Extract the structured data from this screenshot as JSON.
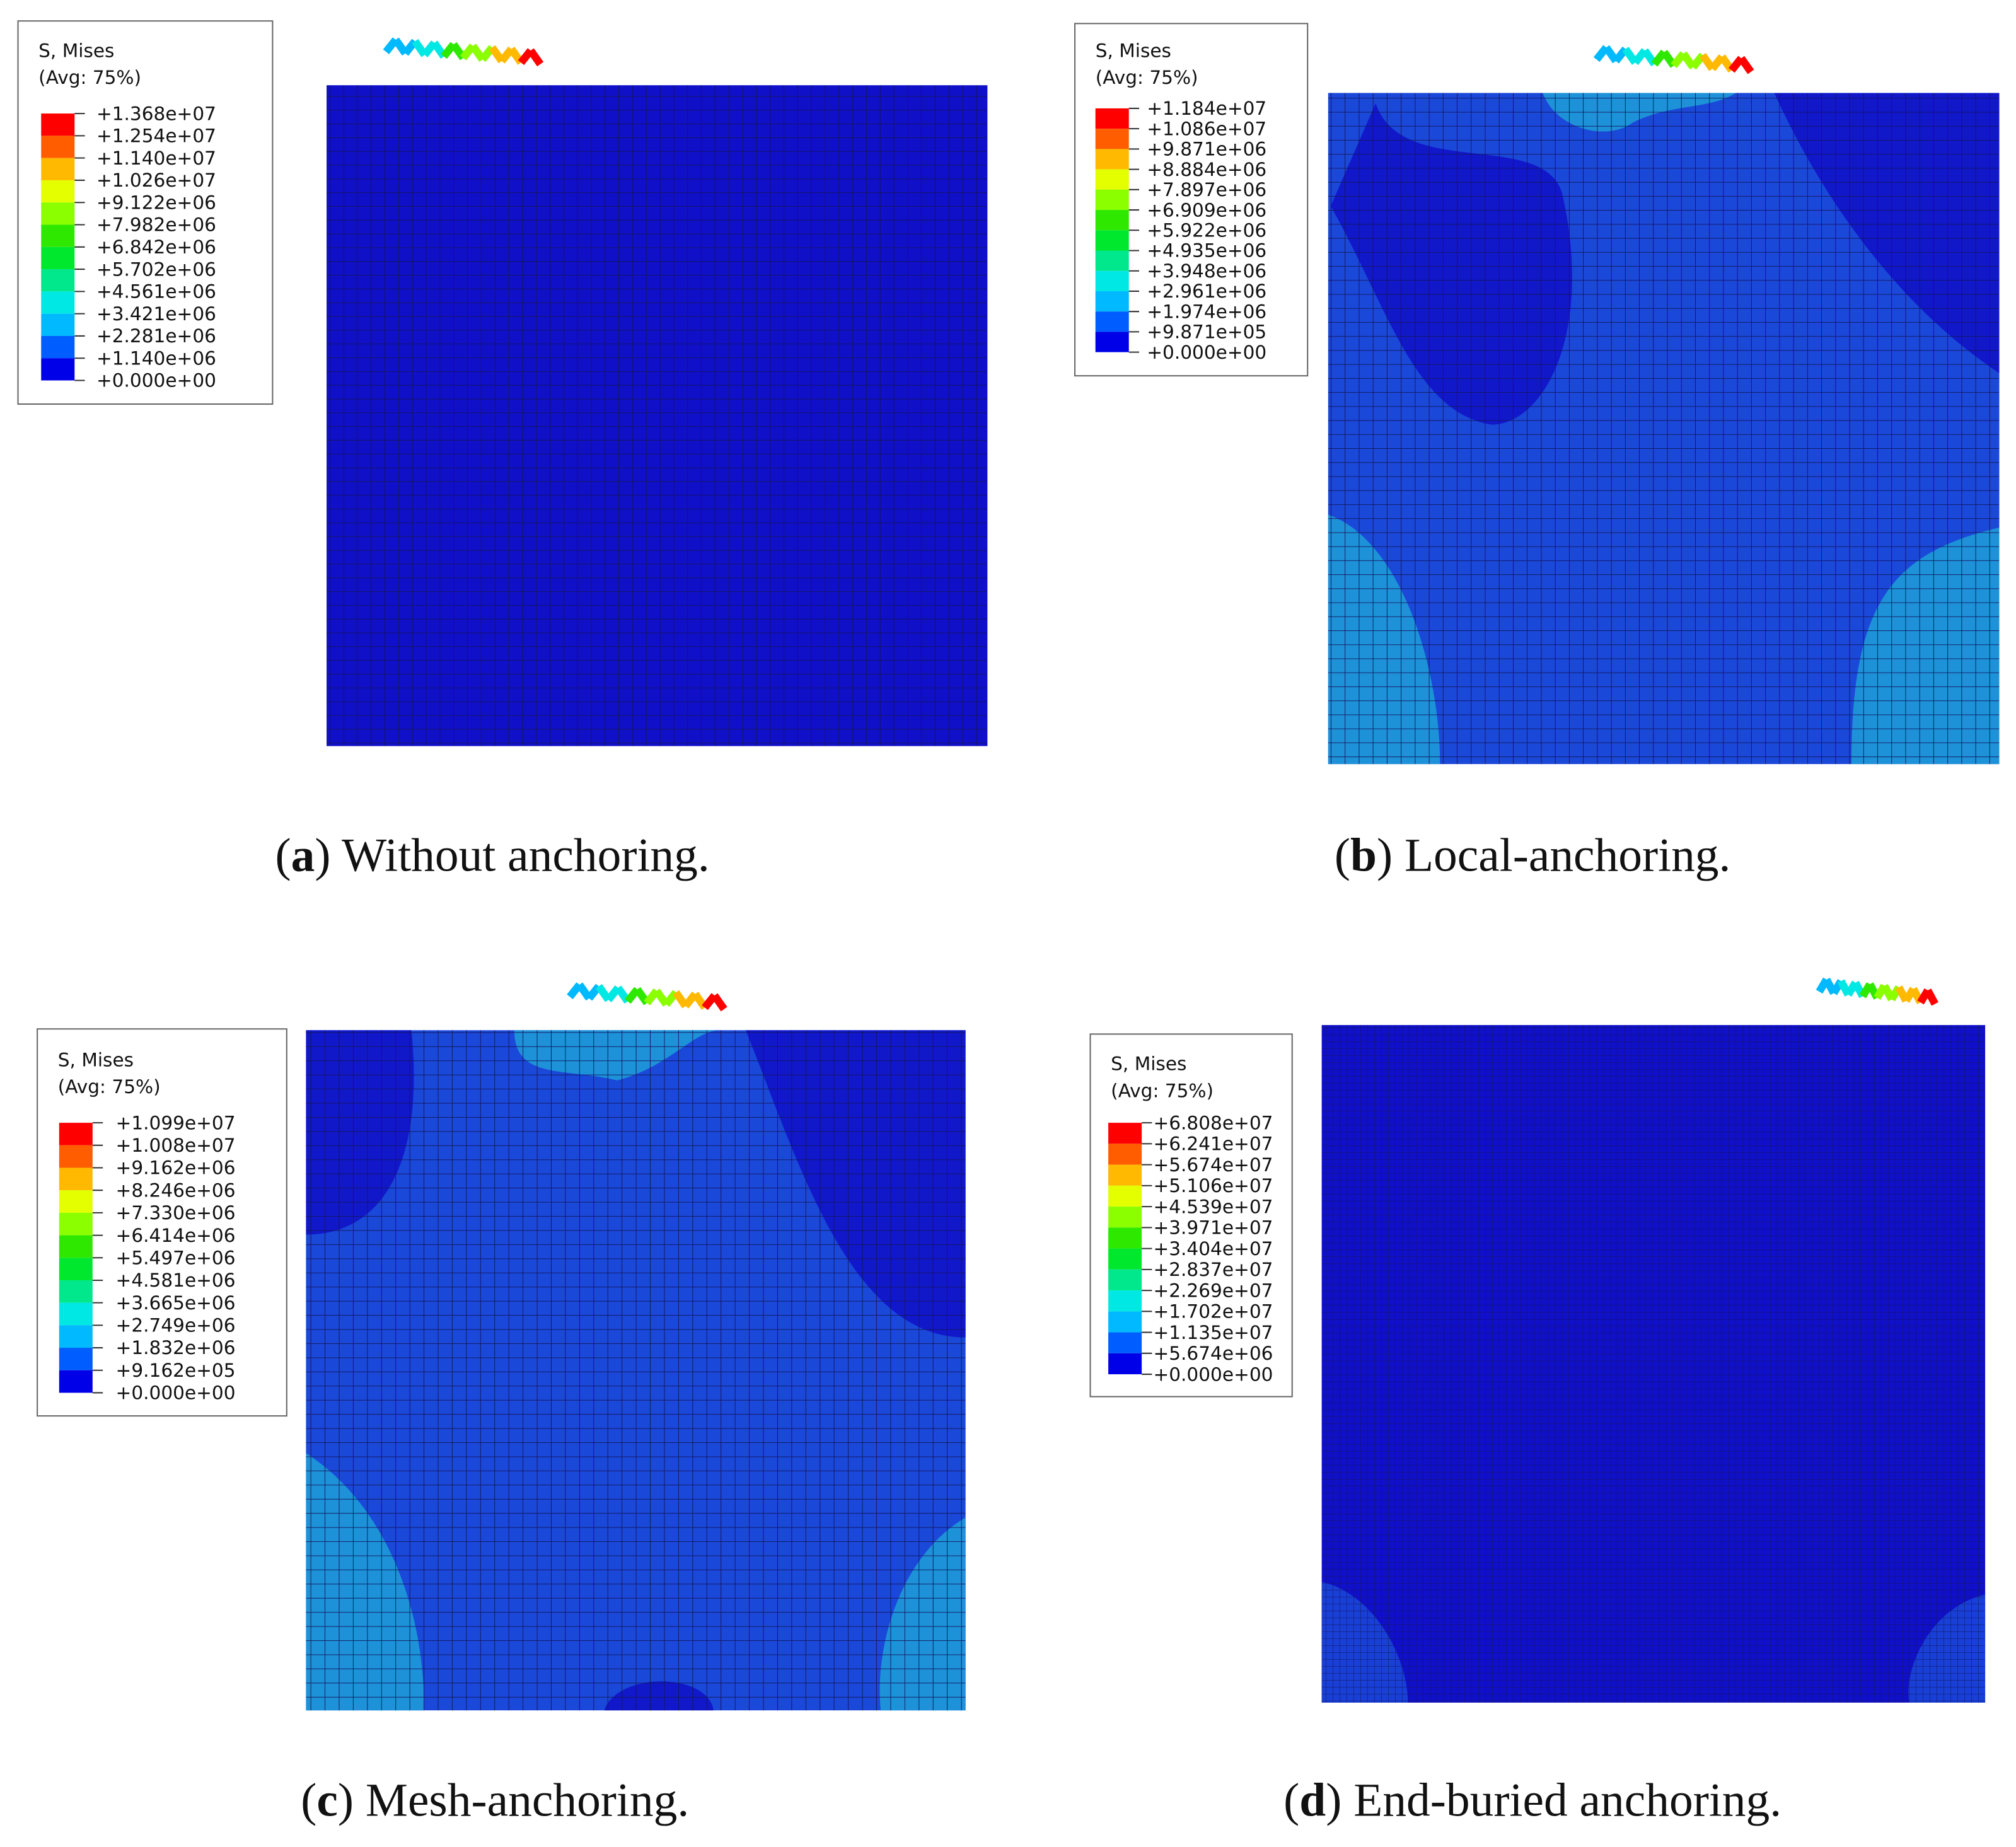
{
  "panels": [
    {
      "legend": {
        "title": "S, Mises",
        "subtitle": "(Avg: 75%)",
        "labels": [
          "+1.368e+07",
          "+1.254e+07",
          "+1.140e+07",
          "+1.026e+07",
          "+9.122e+06",
          "+7.982e+06",
          "+6.842e+06",
          "+5.702e+06",
          "+4.561e+06",
          "+3.421e+06",
          "+2.281e+06",
          "+1.140e+06",
          "+0.000e+00"
        ]
      },
      "caption": [
        "(",
        "a",
        ") Without anchoring."
      ]
    },
    {
      "legend": {
        "title": "S, Mises",
        "subtitle": "(Avg: 75%)",
        "labels": [
          "+1.184e+07",
          "+1.086e+07",
          "+9.871e+06",
          "+8.884e+06",
          "+7.897e+06",
          "+6.909e+06",
          "+5.922e+06",
          "+4.935e+06",
          "+3.948e+06",
          "+2.961e+06",
          "+1.974e+06",
          "+9.871e+05",
          "+0.000e+00"
        ]
      },
      "caption": [
        "(",
        "b",
        ") Local-anchoring."
      ]
    },
    {
      "legend": {
        "title": "S, Mises",
        "subtitle": "(Avg: 75%)",
        "labels": [
          "+1.099e+07",
          "+1.008e+07",
          "+9.162e+06",
          "+8.246e+06",
          "+7.330e+06",
          "+6.414e+06",
          "+5.497e+06",
          "+4.581e+06",
          "+3.665e+06",
          "+2.749e+06",
          "+1.832e+06",
          "+9.162e+05",
          "+0.000e+00"
        ]
      },
      "caption": [
        "(",
        "c",
        ") Mesh-anchoring."
      ]
    },
    {
      "legend": {
        "title": "S, Mises",
        "subtitle": "(Avg: 75%)",
        "labels": [
          "+6.808e+07",
          "+6.241e+07",
          "+5.674e+07",
          "+5.106e+07",
          "+4.539e+07",
          "+3.971e+07",
          "+3.404e+07",
          "+2.837e+07",
          "+2.269e+07",
          "+1.702e+07",
          "+1.135e+07",
          "+5.674e+06",
          "+0.000e+00"
        ]
      },
      "caption": [
        "(",
        "d",
        ") End-buried anchoring."
      ]
    }
  ]
}
